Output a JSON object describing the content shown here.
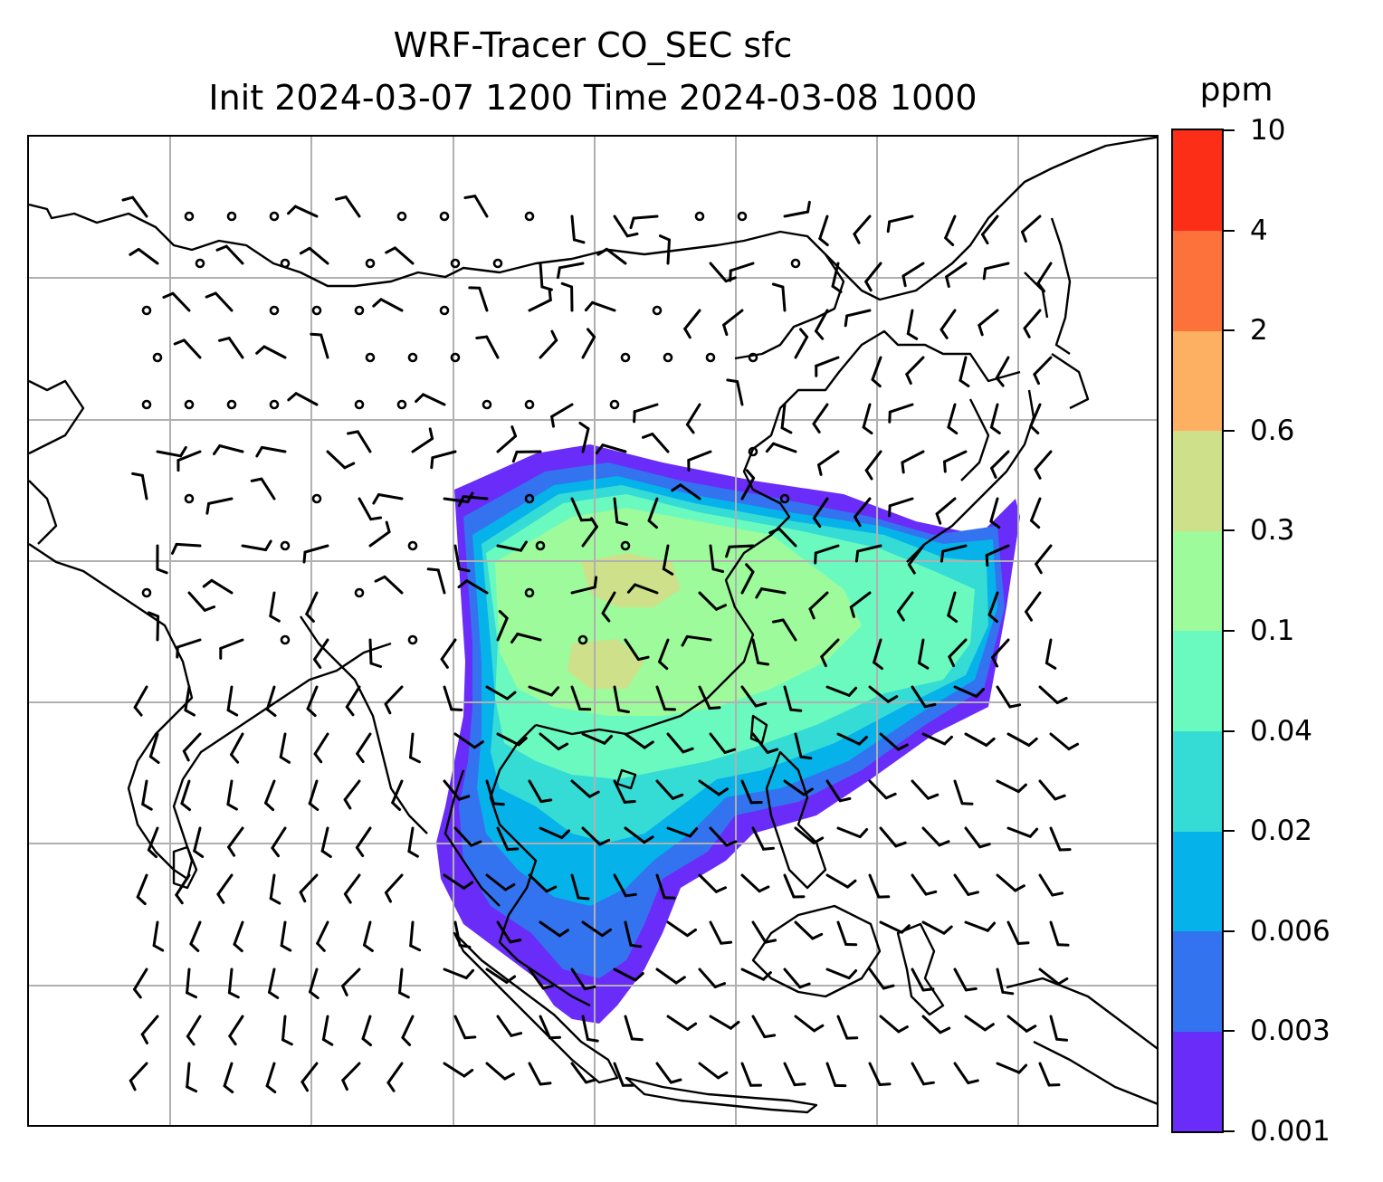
{
  "title": {
    "line1": "WRF-Tracer CO_SEC sfc",
    "line2": "Init 2024-03-07 1200 Time 2024-03-08 1000"
  },
  "colorbar": {
    "unit": "ppm",
    "levels": [
      "0.001",
      "0.003",
      "0.006",
      "0.02",
      "0.04",
      "0.1",
      "0.3",
      "0.6",
      "2",
      "4",
      "10"
    ],
    "colors": [
      "#6a2cf8",
      "#3373f0",
      "#06b2ea",
      "#35dcd5",
      "#6afac0",
      "#9dfb9b",
      "#cfe08a",
      "#fdb062",
      "#fd723b",
      "#fd2e18"
    ]
  },
  "map": {
    "grid": "on",
    "grid_color": "#b0b0b0",
    "coastline_color": "#000000",
    "layers": [
      "filled concentration contours",
      "wind barbs",
      "coastlines"
    ]
  }
}
